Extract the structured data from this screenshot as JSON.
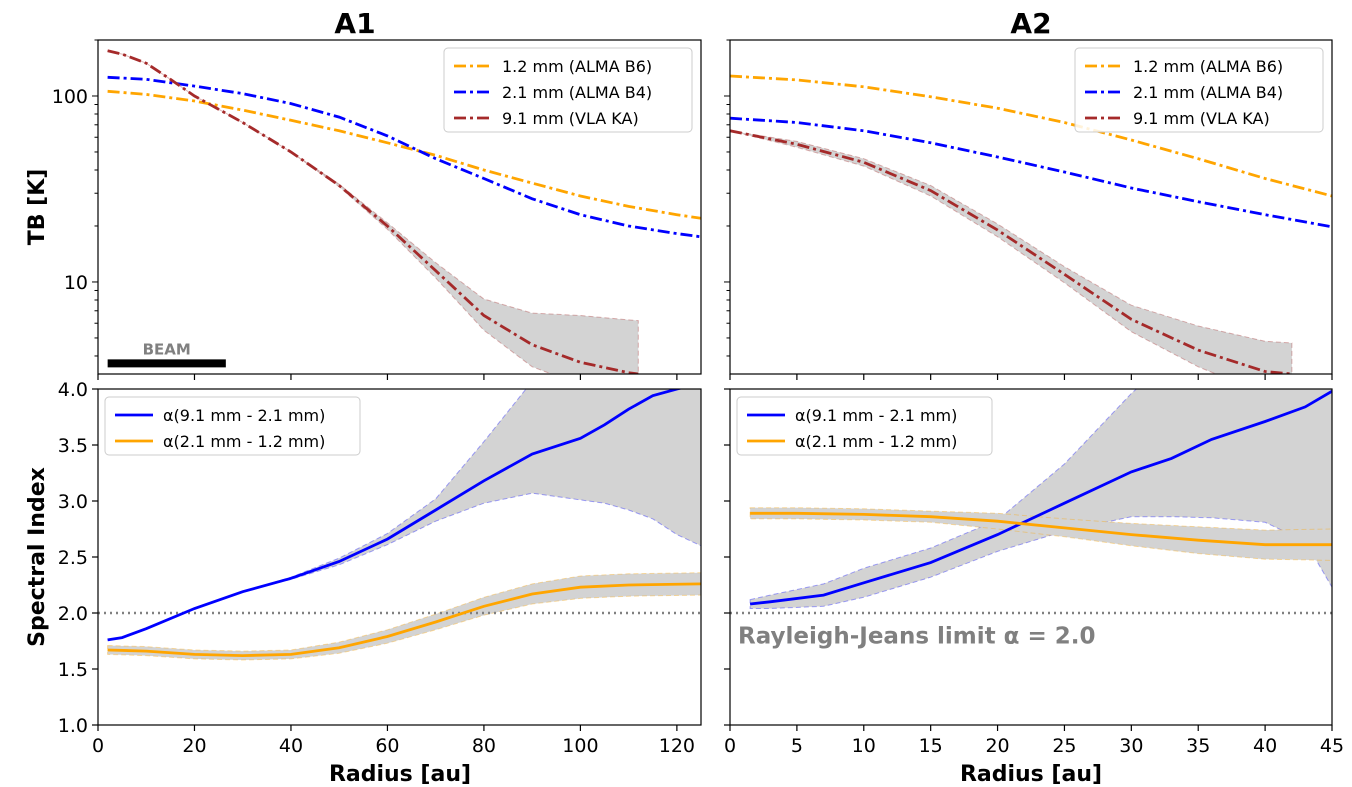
{
  "chart_data": [
    {
      "type": "line",
      "panel": "top-left",
      "title": "A1",
      "ylabel": "TB [K]",
      "xlabel": "",
      "xlim": [
        0,
        125
      ],
      "ylim": [
        3.2,
        200
      ],
      "yscale": "log",
      "yticks": [
        10,
        100
      ],
      "ytick_labels": [
        "10",
        "100"
      ],
      "legend_position": "top-right",
      "annotation": "BEAM",
      "beam_extent": [
        2,
        26.5
      ],
      "series": [
        {
          "name": "1.2 mm (ALMA B6)",
          "color": "#ffa500",
          "style": "dashdot",
          "x": [
            2,
            10,
            20,
            30,
            40,
            50,
            60,
            70,
            80,
            90,
            100,
            110,
            120,
            125
          ],
          "y": [
            106,
            102,
            94,
            84,
            74,
            65,
            56,
            48,
            40,
            34,
            29,
            25.5,
            23,
            22
          ],
          "band": []
        },
        {
          "name": "2.1 mm (ALMA B4)",
          "color": "#0000ff",
          "style": "dashdot",
          "x": [
            2,
            10,
            20,
            30,
            40,
            50,
            60,
            70,
            80,
            90,
            100,
            110,
            120,
            125
          ],
          "y": [
            126,
            123,
            113,
            103,
            91,
            77,
            61,
            46,
            36,
            28,
            23,
            20,
            18.2,
            17.5
          ],
          "band": []
        },
        {
          "name": "9.1 mm (VLA KA)",
          "color": "#a52a2a",
          "style": "dashdot",
          "x": [
            2,
            5,
            10,
            15,
            20,
            30,
            40,
            50,
            60,
            70,
            80,
            90,
            100,
            110,
            112
          ],
          "y": [
            175,
            168,
            150,
            123,
            100,
            72,
            50,
            33,
            20,
            11.5,
            6.6,
            4.6,
            3.7,
            3.25,
            3.2
          ],
          "band": [
            [
              0,
              0
            ],
            [
              0,
              0
            ],
            [
              0,
              0
            ],
            [
              0,
              0
            ],
            [
              0,
              0
            ],
            [
              0,
              0
            ],
            [
              0,
              0
            ],
            [
              0.5,
              0.5
            ],
            [
              0.8,
              0.8
            ],
            [
              1.0,
              1.2
            ],
            [
              1.1,
              1.5
            ],
            [
              1.1,
              2.2
            ],
            [
              0.9,
              2.9
            ],
            [
              0.7,
              3.0
            ],
            [
              0.7,
              3.0
            ]
          ]
        }
      ]
    },
    {
      "type": "line",
      "panel": "top-right",
      "title": "A2",
      "ylabel": "",
      "xlabel": "",
      "xlim": [
        0,
        45
      ],
      "ylim": [
        3.2,
        200
      ],
      "yscale": "log",
      "legend_position": "top-right",
      "series": [
        {
          "name": "1.2 mm (ALMA B6)",
          "color": "#ffa500",
          "style": "dashdot",
          "x": [
            0,
            5,
            10,
            15,
            20,
            25,
            30,
            35,
            40,
            45
          ],
          "y": [
            128,
            122,
            112,
            99,
            86,
            72,
            58,
            46,
            36,
            29
          ],
          "band": []
        },
        {
          "name": "2.1 mm (ALMA B4)",
          "color": "#0000ff",
          "style": "dashdot",
          "x": [
            0,
            5,
            10,
            15,
            20,
            25,
            30,
            35,
            40,
            45
          ],
          "y": [
            76,
            72,
            65,
            56,
            47,
            39,
            32,
            27,
            23,
            19.8
          ],
          "band": []
        },
        {
          "name": "9.1 mm (VLA KA)",
          "color": "#a52a2a",
          "style": "dashdot",
          "x": [
            0,
            5,
            10,
            15,
            20,
            25,
            30,
            35,
            40,
            42
          ],
          "y": [
            65,
            55,
            44,
            31,
            19,
            11,
            6.3,
            4.3,
            3.3,
            3.2
          ],
          "band": [
            [
              0,
              0
            ],
            [
              2,
              2
            ],
            [
              2,
              2
            ],
            [
              2,
              2
            ],
            [
              1.5,
              1.5
            ],
            [
              1.1,
              1.1
            ],
            [
              0.9,
              1.2
            ],
            [
              0.8,
              1.5
            ],
            [
              0.8,
              1.5
            ],
            [
              0.8,
              1.5
            ]
          ]
        }
      ]
    },
    {
      "type": "line",
      "panel": "bottom-left",
      "title": "",
      "ylabel": "Spectral Index",
      "xlabel": "Radius [au]",
      "xlim": [
        0,
        125
      ],
      "ylim": [
        1.0,
        4.0
      ],
      "xticks": [
        0,
        20,
        40,
        60,
        80,
        100,
        120
      ],
      "yticks": [
        1.0,
        1.5,
        2.0,
        2.5,
        3.0,
        3.5,
        4.0
      ],
      "legend_position": "top-left",
      "reference_line": 2.0,
      "series": [
        {
          "name": "α(9.1 mm - 2.1 mm)",
          "color": "#0000ff",
          "style": "solid",
          "x": [
            2,
            5,
            10,
            20,
            30,
            40,
            50,
            60,
            70,
            80,
            90,
            100,
            105,
            110,
            115,
            120,
            125
          ],
          "y": [
            1.76,
            1.78,
            1.86,
            2.04,
            2.19,
            2.31,
            2.46,
            2.66,
            2.92,
            3.18,
            3.42,
            3.56,
            3.68,
            3.82,
            3.94,
            4.0,
            4.05
          ],
          "band": [
            [
              0,
              0
            ],
            [
              0,
              0
            ],
            [
              0,
              0
            ],
            [
              0,
              0
            ],
            [
              0,
              0
            ],
            [
              0.01,
              0.01
            ],
            [
              0.03,
              0.03
            ],
            [
              0.05,
              0.05
            ],
            [
              0.1,
              0.1
            ],
            [
              0.2,
              0.35
            ],
            [
              0.35,
              0.65
            ],
            [
              0.55,
              0.9
            ],
            [
              0.7,
              1.1
            ],
            [
              0.9,
              1.3
            ],
            [
              1.1,
              1.5
            ],
            [
              1.3,
              1.7
            ],
            [
              1.45,
              1.8
            ]
          ]
        },
        {
          "name": "α(2.1 mm - 1.2 mm)",
          "color": "#ffa500",
          "style": "solid",
          "x": [
            2,
            10,
            20,
            30,
            40,
            50,
            60,
            70,
            80,
            90,
            100,
            110,
            125
          ],
          "y": [
            1.67,
            1.66,
            1.63,
            1.62,
            1.63,
            1.69,
            1.79,
            1.92,
            2.06,
            2.17,
            2.23,
            2.25,
            2.26
          ],
          "band": [
            [
              0.04,
              0.04
            ],
            [
              0.04,
              0.04
            ],
            [
              0.04,
              0.04
            ],
            [
              0.04,
              0.04
            ],
            [
              0.04,
              0.04
            ],
            [
              0.05,
              0.05
            ],
            [
              0.06,
              0.06
            ],
            [
              0.07,
              0.07
            ],
            [
              0.08,
              0.08
            ],
            [
              0.09,
              0.09
            ],
            [
              0.1,
              0.1
            ],
            [
              0.1,
              0.1
            ],
            [
              0.1,
              0.1
            ]
          ]
        }
      ]
    },
    {
      "type": "line",
      "panel": "bottom-right",
      "title": "",
      "ylabel": "",
      "xlabel": "Radius [au]",
      "xlim": [
        0,
        45
      ],
      "ylim": [
        1.0,
        4.0
      ],
      "xticks": [
        0,
        5,
        10,
        15,
        20,
        25,
        30,
        35,
        40,
        45
      ],
      "legend_position": "top-left",
      "reference_line": 2.0,
      "annotation": "Rayleigh-Jeans limit α = 2.0",
      "series": [
        {
          "name": "α(9.1 mm - 2.1 mm)",
          "color": "#0000ff",
          "style": "solid",
          "x": [
            1.5,
            3,
            7,
            10,
            15,
            20,
            25,
            30,
            33,
            36,
            40,
            43,
            45
          ],
          "y": [
            2.08,
            2.1,
            2.16,
            2.27,
            2.45,
            2.7,
            2.98,
            3.26,
            3.38,
            3.55,
            3.71,
            3.84,
            3.98
          ],
          "band": [
            [
              0.04,
              0.04
            ],
            [
              0.06,
              0.06
            ],
            [
              0.1,
              0.1
            ],
            [
              0.13,
              0.13
            ],
            [
              0.13,
              0.13
            ],
            [
              0.15,
              0.13
            ],
            [
              0.25,
              0.35
            ],
            [
              0.4,
              0.7
            ],
            [
              0.52,
              0.9
            ],
            [
              0.7,
              1.1
            ],
            [
              0.9,
              1.3
            ],
            [
              1.2,
              1.55
            ],
            [
              1.75,
              1.75
            ]
          ]
        },
        {
          "name": "α(2.1 mm - 1.2 mm)",
          "color": "#ffa500",
          "style": "solid",
          "x": [
            1.5,
            5,
            10,
            15,
            20,
            25,
            30,
            35,
            40,
            45
          ],
          "y": [
            2.89,
            2.89,
            2.88,
            2.86,
            2.82,
            2.76,
            2.7,
            2.65,
            2.61,
            2.61
          ],
          "band": [
            [
              0.05,
              0.05
            ],
            [
              0.05,
              0.05
            ],
            [
              0.05,
              0.05
            ],
            [
              0.05,
              0.05
            ],
            [
              0.07,
              0.07
            ],
            [
              0.08,
              0.08
            ],
            [
              0.1,
              0.1
            ],
            [
              0.12,
              0.12
            ],
            [
              0.13,
              0.13
            ],
            [
              0.14,
              0.14
            ]
          ]
        }
      ]
    }
  ]
}
